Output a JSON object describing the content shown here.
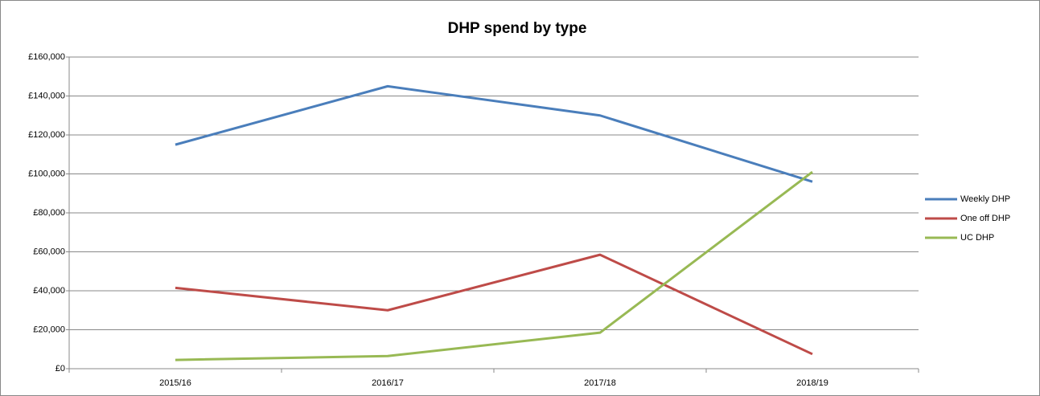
{
  "chart_data": {
    "type": "line",
    "title": "DHP spend by type",
    "categories": [
      "2015/16",
      "2016/17",
      "2017/18",
      "2018/19"
    ],
    "series": [
      {
        "name": "Weekly DHP",
        "color": "#4a7ebb",
        "values": [
          115000,
          145000,
          130000,
          96000
        ]
      },
      {
        "name": "One off DHP",
        "color": "#be4b48",
        "values": [
          41500,
          30000,
          58500,
          7500
        ]
      },
      {
        "name": "UC DHP",
        "color": "#98b954",
        "values": [
          4500,
          6500,
          18500,
          101000
        ]
      }
    ],
    "ylim": [
      0,
      160000
    ],
    "yticks": [
      {
        "value": 0,
        "label": "£0"
      },
      {
        "value": 20000,
        "label": "£20,000"
      },
      {
        "value": 40000,
        "label": "£40,000"
      },
      {
        "value": 60000,
        "label": "£60,000"
      },
      {
        "value": 80000,
        "label": "£80,000"
      },
      {
        "value": 100000,
        "label": "£100,000"
      },
      {
        "value": 120000,
        "label": "£120,000"
      },
      {
        "value": 140000,
        "label": "£140,000"
      },
      {
        "value": 160000,
        "label": "£160,000"
      }
    ],
    "grid": true,
    "legend": "right"
  }
}
